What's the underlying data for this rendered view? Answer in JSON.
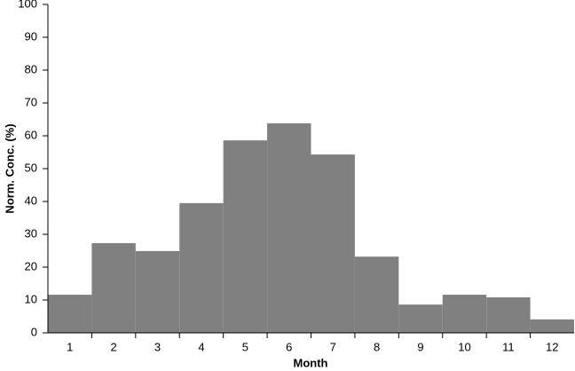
{
  "chart_data": {
    "type": "bar",
    "x_label": "Month",
    "y_label": "Norm. Conc. (%)",
    "categories": [
      "1",
      "2",
      "3",
      "4",
      "5",
      "6",
      "7",
      "8",
      "9",
      "10",
      "11",
      "12"
    ],
    "values": [
      11.6,
      27.3,
      24.9,
      39.5,
      58.6,
      63.8,
      54.3,
      23.2,
      8.6,
      11.6,
      10.8,
      4.1
    ],
    "color": "#808080",
    "ylim": [
      0,
      100
    ],
    "yticks": [
      0,
      10,
      20,
      30,
      40,
      50,
      60,
      70,
      80,
      90,
      100
    ],
    "grid": false
  }
}
